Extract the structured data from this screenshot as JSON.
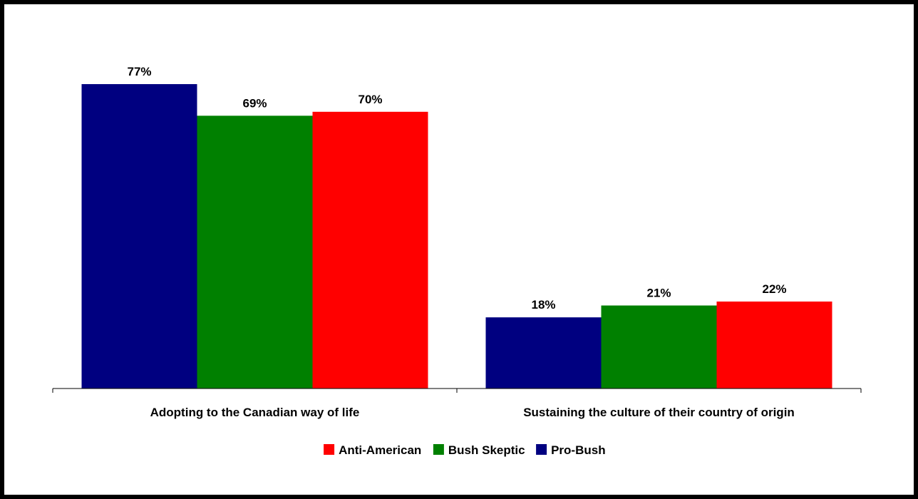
{
  "chart_data": {
    "type": "bar",
    "categories": [
      "Adopting to the Canadian way of life",
      "Sustaining the culture of their country of origin"
    ],
    "series": [
      {
        "name": "Pro-Bush",
        "color": "#000080",
        "values": [
          77,
          18
        ],
        "labels": [
          "77%",
          "18%"
        ]
      },
      {
        "name": "Bush Skeptic",
        "color": "#008000",
        "values": [
          69,
          21
        ],
        "labels": [
          "69%",
          "21%"
        ]
      },
      {
        "name": "Anti-American",
        "color": "#ff0000",
        "values": [
          70,
          22
        ],
        "labels": [
          "70%",
          "22%"
        ]
      }
    ],
    "legend_order": [
      "Anti-American",
      "Bush Skeptic",
      "Pro-Bush"
    ],
    "legend_position": "bottom",
    "value_unit": "%",
    "ylim": [
      0,
      88
    ],
    "grid": false,
    "title": "",
    "xlabel": "",
    "ylabel": ""
  }
}
